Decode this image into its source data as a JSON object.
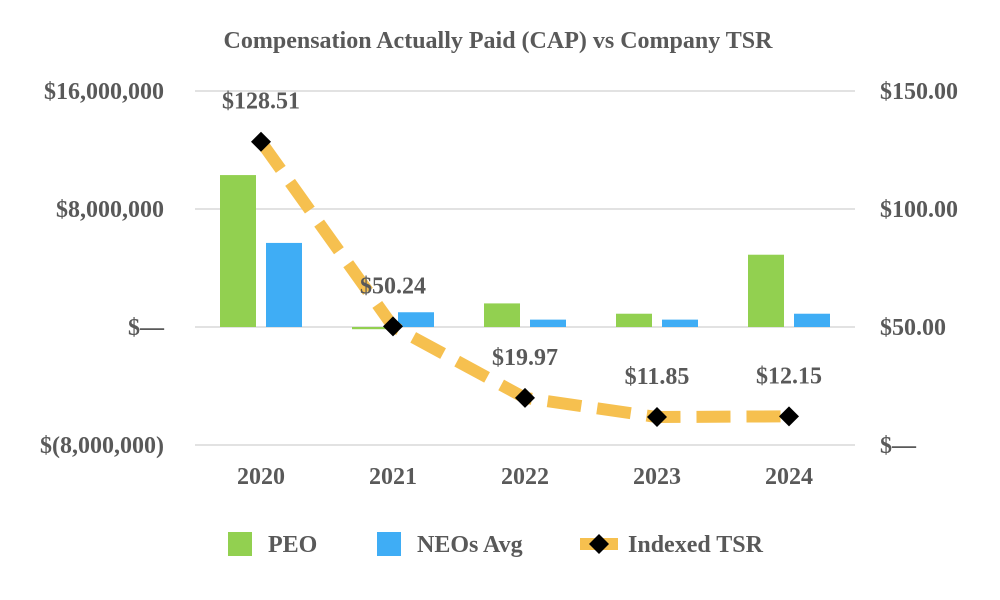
{
  "chart_data": {
    "type": "bar",
    "title": "Compensation Actually Paid (CAP) vs Company TSR",
    "categories": [
      "2020",
      "2021",
      "2022",
      "2023",
      "2024"
    ],
    "series": [
      {
        "name": "PEO",
        "type": "bar",
        "axis": "left",
        "color": "#92d050",
        "values": [
          10300000,
          -150000,
          1600000,
          900000,
          4900000
        ]
      },
      {
        "name": "NEOs Avg",
        "type": "bar",
        "axis": "left",
        "color": "#3fadf5",
        "values": [
          5700000,
          1000000,
          500000,
          500000,
          900000
        ]
      },
      {
        "name": "Indexed TSR",
        "type": "line",
        "axis": "right",
        "color": "#f6c04f",
        "marker_color": "#000000",
        "values": [
          128.51,
          50.24,
          19.97,
          11.85,
          12.15
        ],
        "labels": [
          "$128.51",
          "$50.24",
          "$19.97",
          "$11.85",
          "$12.15"
        ]
      }
    ],
    "y_left": {
      "ylim": [
        -8000000,
        16000000
      ],
      "ticks": [
        16000000,
        8000000,
        0,
        -8000000
      ],
      "tick_labels": [
        "$16,000,000",
        "$8,000,000",
        "$—",
        "$(8,000,000)"
      ]
    },
    "y_right": {
      "ylim": [
        0,
        150
      ],
      "ticks": [
        150,
        100,
        50,
        0
      ],
      "tick_labels": [
        "$150.00",
        "$100.00",
        "$50.00",
        "$—"
      ]
    },
    "grid": true,
    "legend_position": "bottom",
    "legend": [
      "PEO",
      "NEOs Avg",
      "Indexed TSR"
    ]
  }
}
